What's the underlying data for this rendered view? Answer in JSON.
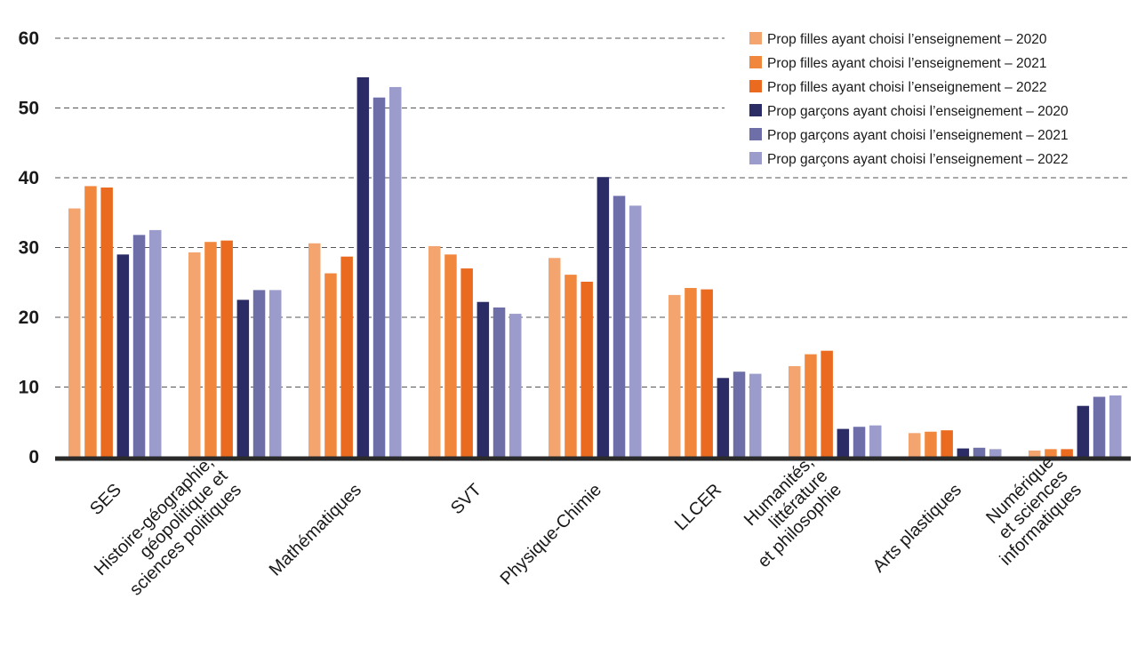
{
  "chart_data": {
    "type": "bar",
    "ylim": [
      0,
      60
    ],
    "yticks": [
      0,
      10,
      20,
      30,
      40,
      50,
      60
    ],
    "grid": true,
    "legend_position": "top-right",
    "categories": [
      "SES",
      "Histoire-géographie,\ngéopolitique et\nsciences politiques",
      "Mathématiques",
      "SVT",
      "Physique-Chimie",
      "LLCER",
      "Humanités,\nlittérature\net philosophie",
      "Arts plastiques",
      "Numérique\net sciences\ninformatiques"
    ],
    "series": [
      {
        "name": "Prop filles ayant choisi l’enseignement – 2020",
        "color": "#f4a46e",
        "values": [
          35.6,
          29.3,
          30.6,
          30.2,
          28.5,
          23.2,
          13.0,
          3.4,
          0.9
        ]
      },
      {
        "name": "Prop filles ayant choisi l’enseignement – 2021",
        "color": "#f1873c",
        "values": [
          38.8,
          30.8,
          26.3,
          29.0,
          26.1,
          24.2,
          14.7,
          3.6,
          1.1
        ]
      },
      {
        "name": "Prop filles ayant choisi l’enseignement – 2022",
        "color": "#ea6a1f",
        "values": [
          38.6,
          31.0,
          28.7,
          27.0,
          25.1,
          24.0,
          15.2,
          3.8,
          1.1
        ]
      },
      {
        "name": "Prop garçons ayant choisi l’enseignement – 2020",
        "color": "#2b2b66",
        "values": [
          29.0,
          22.5,
          54.4,
          22.2,
          40.1,
          11.3,
          4.0,
          1.2,
          7.3
        ]
      },
      {
        "name": "Prop garçons ayant choisi l’enseignement – 2021",
        "color": "#6e6ea8",
        "values": [
          31.8,
          23.9,
          51.5,
          21.4,
          37.4,
          12.2,
          4.3,
          1.3,
          8.6
        ]
      },
      {
        "name": "Prop garçons ayant choisi l’enseignement – 2022",
        "color": "#9c9ccc",
        "values": [
          32.5,
          23.9,
          53.0,
          20.5,
          36.0,
          11.9,
          4.5,
          1.1,
          8.8
        ]
      }
    ]
  }
}
